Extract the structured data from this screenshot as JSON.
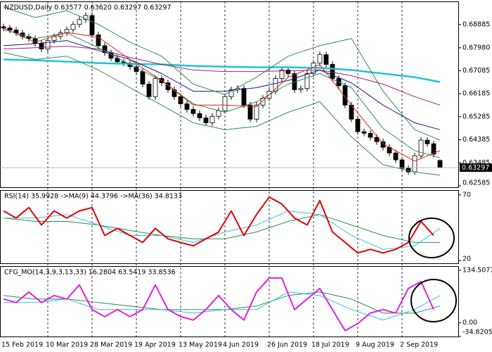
{
  "chart_data": [
    {
      "type": "candlestick",
      "title": "NZDUSD,Daily  0.63577 0.63620 0.63297 0.63297",
      "categories": [
        "15 Feb 2019",
        null,
        null,
        null,
        null,
        null,
        null,
        "10 Mar 2019",
        null,
        null,
        null,
        null,
        null,
        null,
        "28 Mar 2019",
        null,
        null,
        null,
        null,
        null,
        null,
        "19 Apr 2019",
        null,
        null,
        null,
        null,
        null,
        null,
        "13 May 2019",
        null,
        null,
        null,
        null,
        null,
        null,
        "4 Jun 2019",
        null,
        null,
        null,
        null,
        null,
        null,
        "26 Jun 2019",
        null,
        null,
        null,
        null,
        null,
        null,
        "18 Jul 2019",
        null,
        null,
        null,
        null,
        null,
        null,
        "9 Aug 2019",
        null,
        null,
        null,
        null,
        null,
        null,
        "2 Sep 2019",
        null,
        null,
        null,
        null,
        null,
        null
      ],
      "open": [
        0.688,
        0.6875,
        0.6867,
        0.6856,
        0.6842,
        0.6834,
        0.6815,
        0.6793,
        0.6826,
        0.6842,
        0.6856,
        0.6869,
        0.6889,
        0.6908,
        0.6924,
        0.6848,
        0.6806,
        0.6779,
        0.6757,
        0.6743,
        0.6738,
        0.6724,
        0.6705,
        0.6656,
        0.6607,
        0.6678,
        0.6661,
        0.6634,
        0.6607,
        0.6579,
        0.6557,
        0.6541,
        0.6524,
        0.6505,
        0.653,
        0.6552,
        0.6607,
        0.6634,
        0.6639,
        0.6574,
        0.6519,
        0.6574,
        0.6601,
        0.6628,
        0.6678,
        0.6711,
        0.6697,
        0.6634,
        0.6639,
        0.6697,
        0.6738,
        0.6771,
        0.6733,
        0.6678,
        0.665,
        0.6574,
        0.6519,
        0.647,
        0.6464,
        0.6448,
        0.6431,
        0.6409,
        0.6387,
        0.636,
        0.6327,
        0.6313,
        0.6376,
        0.6437,
        0.6423,
        0.63577
      ],
      "high": [
        0.6892,
        0.6887,
        0.6879,
        0.6868,
        0.6854,
        0.6846,
        0.6827,
        0.6838,
        0.6854,
        0.6868,
        0.6881,
        0.6901,
        0.692,
        0.6936,
        0.6936,
        0.686,
        0.6818,
        0.6791,
        0.6769,
        0.6755,
        0.675,
        0.6736,
        0.6717,
        0.6668,
        0.669,
        0.669,
        0.6673,
        0.6646,
        0.6619,
        0.6591,
        0.6569,
        0.6553,
        0.6536,
        0.6542,
        0.6564,
        0.6619,
        0.6646,
        0.6651,
        0.6651,
        0.6586,
        0.6586,
        0.6613,
        0.664,
        0.669,
        0.6723,
        0.6723,
        0.6709,
        0.6651,
        0.6709,
        0.675,
        0.6783,
        0.6783,
        0.6745,
        0.669,
        0.6662,
        0.6586,
        0.6531,
        0.6482,
        0.6476,
        0.646,
        0.6443,
        0.6421,
        0.6399,
        0.6372,
        0.6339,
        0.6388,
        0.6449,
        0.6449,
        0.6435,
        0.6362
      ],
      "low": [
        0.6863,
        0.6855,
        0.6844,
        0.683,
        0.6822,
        0.6803,
        0.6781,
        0.6781,
        0.6814,
        0.683,
        0.6844,
        0.6857,
        0.6877,
        0.6896,
        0.6836,
        0.6794,
        0.6767,
        0.6745,
        0.6731,
        0.6726,
        0.6712,
        0.6693,
        0.6644,
        0.6595,
        0.6595,
        0.6649,
        0.6622,
        0.6595,
        0.6567,
        0.6545,
        0.6529,
        0.6512,
        0.6493,
        0.6493,
        0.6518,
        0.654,
        0.6595,
        0.6622,
        0.6562,
        0.6507,
        0.6507,
        0.6562,
        0.6589,
        0.6616,
        0.6666,
        0.6685,
        0.6622,
        0.6622,
        0.6627,
        0.6685,
        0.6726,
        0.6721,
        0.6666,
        0.6638,
        0.6562,
        0.6507,
        0.6458,
        0.6452,
        0.6436,
        0.6419,
        0.6397,
        0.6375,
        0.6348,
        0.6315,
        0.6301,
        0.6301,
        0.6364,
        0.6411,
        0.637,
        0.63297
      ],
      "close": [
        0.6875,
        0.6867,
        0.6856,
        0.6842,
        0.6834,
        0.6815,
        0.6793,
        0.6826,
        0.6842,
        0.6856,
        0.6869,
        0.6889,
        0.6908,
        0.6924,
        0.6848,
        0.6806,
        0.6779,
        0.6757,
        0.6743,
        0.6738,
        0.6724,
        0.6705,
        0.6656,
        0.6607,
        0.6678,
        0.6661,
        0.6634,
        0.6607,
        0.6579,
        0.6557,
        0.6541,
        0.6524,
        0.6505,
        0.653,
        0.6552,
        0.6607,
        0.6634,
        0.6639,
        0.6574,
        0.6519,
        0.6574,
        0.6601,
        0.6628,
        0.6678,
        0.6711,
        0.6697,
        0.6634,
        0.6639,
        0.6697,
        0.6738,
        0.6771,
        0.6733,
        0.6678,
        0.665,
        0.6574,
        0.6519,
        0.647,
        0.6464,
        0.6448,
        0.6431,
        0.6409,
        0.6387,
        0.636,
        0.6327,
        0.6313,
        0.6376,
        0.6437,
        0.6423,
        0.6382,
        0.63297
      ],
      "overlays": [
        {
          "color": "#20c4d4",
          "width": 2.5,
          "x": [
            0,
            5,
            10,
            15,
            20,
            25,
            30,
            35,
            40,
            45,
            50,
            55,
            60,
            65,
            69
          ],
          "values": [
            0.6752,
            0.6749,
            0.6744,
            0.6738,
            0.6735,
            0.6733,
            0.6727,
            0.6724,
            0.6722,
            0.6722,
            0.6719,
            0.6711,
            0.6697,
            0.6683,
            0.6664
          ]
        },
        {
          "color": "#a0207a",
          "width": 1,
          "x": [
            0,
            5,
            10,
            15,
            20,
            25,
            30,
            35,
            40,
            45,
            50,
            55,
            60,
            65,
            69
          ],
          "values": [
            0.6793,
            0.6798,
            0.6804,
            0.6793,
            0.676,
            0.6733,
            0.6711,
            0.6705,
            0.6705,
            0.6708,
            0.6711,
            0.6689,
            0.6656,
            0.6607,
            0.6574
          ]
        },
        {
          "color": "#1a1a80",
          "width": 1,
          "x": [
            0,
            5,
            10,
            15,
            20,
            25,
            30,
            35,
            40,
            45,
            50,
            55,
            60,
            65,
            69
          ],
          "values": [
            0.6806,
            0.6814,
            0.6826,
            0.6787,
            0.6752,
            0.6697,
            0.6628,
            0.6628,
            0.6642,
            0.667,
            0.6711,
            0.6661,
            0.6574,
            0.6505,
            0.6478
          ]
        },
        {
          "color": "#2e8b57",
          "width": 1,
          "x": [
            0,
            5,
            10,
            15,
            20,
            25,
            30,
            35,
            40,
            45,
            50,
            55,
            60,
            65,
            69
          ],
          "values": [
            0.6957,
            0.6916,
            0.6943,
            0.6889,
            0.682,
            0.6765,
            0.6656,
            0.6615,
            0.6683,
            0.6765,
            0.6806,
            0.6834,
            0.6628,
            0.6478,
            0.6437
          ]
        },
        {
          "color": "#2e8b57",
          "width": 1,
          "x": [
            0,
            5,
            10,
            15,
            20,
            25,
            30,
            35,
            40,
            45,
            50,
            55,
            60,
            65,
            69
          ],
          "values": [
            0.6779,
            0.6752,
            0.6765,
            0.6711,
            0.6642,
            0.6574,
            0.6505,
            0.6478,
            0.6491,
            0.6546,
            0.6587,
            0.645,
            0.6341,
            0.6313,
            0.63
          ]
        },
        {
          "color": "#2e8b57",
          "width": 1,
          "x": [
            0,
            5,
            10,
            15,
            20,
            25,
            30,
            35,
            40,
            45,
            50,
            55,
            60,
            65,
            69
          ],
          "values": [
            0.6869,
            0.6834,
            0.6856,
            0.6798,
            0.6732,
            0.667,
            0.6579,
            0.6546,
            0.6587,
            0.6656,
            0.6697,
            0.6642,
            0.6483,
            0.6396,
            0.6368
          ]
        },
        {
          "color": "#e02020",
          "width": 1,
          "x": [
            0,
            5,
            10,
            15,
            20,
            25,
            30,
            35,
            40,
            45,
            50,
            55,
            60,
            65,
            69
          ],
          "values": [
            0.6875,
            0.682,
            0.6858,
            0.6839,
            0.6752,
            0.667,
            0.6574,
            0.6574,
            0.6568,
            0.6683,
            0.6732,
            0.6574,
            0.6423,
            0.6355,
            0.6396
          ]
        }
      ],
      "ylim": [
        0.6253,
        0.6979
      ],
      "yticks": [
        0.68885,
        {
          "value": 0.6798,
          "label": "0.67980"
        },
        0.67085,
        0.66185,
        0.65285,
        0.64385,
        0.63485,
        0.62585
      ],
      "current_price": 0.63297
    },
    {
      "type": "line",
      "title": "RSI(14) 35.9928 ->MA(9) 44.3796 ->MA(36) 34.8133",
      "ylim": [
        17.9,
        73.7
      ],
      "yticks": [
        70,
        20
      ],
      "series": [
        {
          "color": "#2e8b57",
          "width": 1,
          "x": [
            0,
            5,
            10,
            15,
            20,
            25,
            30,
            35,
            40,
            45,
            50,
            55,
            60,
            65,
            69
          ],
          "values": [
            52.4,
            49.8,
            49.8,
            47.1,
            42.9,
            39.1,
            36.5,
            36.5,
            41.8,
            49.8,
            55.1,
            47.1,
            39.1,
            33.8,
            33.8
          ]
        },
        {
          "color": "#30c0e0",
          "width": 1,
          "x": [
            0,
            5,
            10,
            15,
            20,
            25,
            30,
            35,
            40,
            45,
            50,
            55,
            60,
            65,
            69
          ],
          "values": [
            52.4,
            52.4,
            55.1,
            47.1,
            39.1,
            39.1,
            33.8,
            41.8,
            47.1,
            57.8,
            55.1,
            39.1,
            28.5,
            31.2,
            44.5
          ]
        },
        {
          "color": "#e00000",
          "width": 2,
          "x": [
            0,
            2,
            4,
            6,
            8,
            10,
            12,
            14,
            16,
            18,
            20,
            22,
            24,
            26,
            28,
            30,
            32,
            34,
            36,
            38,
            40,
            42,
            44,
            46,
            48,
            50,
            52,
            54,
            56,
            58,
            60,
            62,
            64,
            66,
            68
          ],
          "values": [
            57.8,
            52.4,
            60.4,
            47.1,
            57.8,
            52.4,
            57.8,
            60.4,
            39.1,
            44.5,
            39.1,
            33.8,
            44.5,
            36.5,
            33.8,
            31.2,
            36.5,
            41.8,
            57.8,
            39.1,
            55.1,
            68.4,
            63.1,
            52.4,
            47.1,
            65.7,
            41.8,
            33.8,
            25.8,
            28.5,
            25.8,
            28.5,
            33.8,
            49.8,
            39.1
          ]
        }
      ]
    },
    {
      "type": "line",
      "title": "CFG_MO(14,3,9,3,13,33) 16.2804 63.5419 33.8536",
      "ylim": [
        -34.8205,
        145
      ],
      "yticks": [
        134.5077,
        {
          "value": 0,
          "label": "0.00"
        },
        -34.8205
      ],
      "series": [
        {
          "color": "#2e8b57",
          "width": 1,
          "x": [
            0,
            5,
            10,
            15,
            20,
            25,
            30,
            35,
            40,
            45,
            50,
            55,
            60,
            65,
            69
          ],
          "values": [
            69.9,
            60.9,
            60.9,
            52,
            43,
            34,
            34,
            34,
            43,
            69.9,
            78.9,
            60.9,
            25.1,
            25.1,
            43
          ]
        },
        {
          "color": "#30c0e0",
          "width": 1,
          "x": [
            0,
            5,
            10,
            15,
            20,
            25,
            30,
            35,
            40,
            45,
            50,
            55,
            60,
            65,
            69
          ],
          "values": [
            52,
            52,
            60.9,
            34,
            34,
            34,
            25.1,
            34,
            34,
            78.9,
            69.9,
            34,
            7.2,
            34,
            69.9
          ]
        },
        {
          "color": "#e020e0",
          "width": 2,
          "x": [
            0,
            2,
            4,
            6,
            8,
            10,
            12,
            14,
            16,
            18,
            20,
            22,
            24,
            26,
            28,
            30,
            32,
            34,
            36,
            38,
            40,
            42,
            44,
            46,
            48,
            50,
            52,
            54,
            56,
            58,
            60,
            62,
            64,
            66,
            68
          ],
          "values": [
            60.9,
            52,
            78.9,
            52,
            69.9,
            60.9,
            96.8,
            34,
            16.1,
            34,
            16.1,
            34,
            96.8,
            34,
            16.1,
            7.2,
            34,
            69.9,
            34,
            7.2,
            78.9,
            114.7,
            114.7,
            34,
            60.9,
            87.8,
            34,
            -19.7,
            -1.8,
            25.1,
            34,
            25.1,
            87.8,
            105.7,
            34
          ]
        }
      ]
    }
  ]
}
